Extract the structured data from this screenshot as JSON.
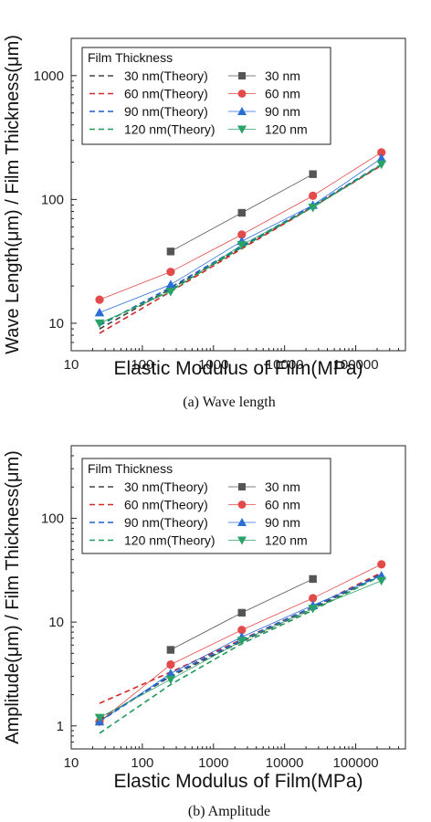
{
  "colors": {
    "s30": "#555555",
    "s60": "#e34a4a",
    "s90": "#2a6fd6",
    "s120": "#2aa368",
    "theory30": "#444444",
    "theory60": "#d42828",
    "theory90": "#1f5fc8",
    "theory120": "#1f9a5a"
  },
  "chart_data": [
    {
      "type": "line",
      "caption": "(a) Wave length",
      "xlabel": "Elastic Modulus of Film(MPa)",
      "ylabel": "Wave Length(μm) / Film Thickness(μm)",
      "xscale": "log",
      "yscale": "log",
      "xlim": [
        10,
        500000
      ],
      "ylim": [
        6,
        2000
      ],
      "x_ticks": [
        10,
        100,
        1000,
        10000,
        100000
      ],
      "x_tick_labels": [
        "10",
        "100",
        "1000",
        "10000",
        "100000"
      ],
      "y_ticks": [
        10,
        100,
        1000
      ],
      "y_tick_labels": [
        "10",
        "100",
        "1000"
      ],
      "legend_title": "Film Thickness",
      "legend_position": "top-left",
      "theory": [
        {
          "name": "30 nm(Theory)",
          "color_key": "theory30",
          "x": [
            25,
            250,
            2500,
            25000,
            230000
          ],
          "y": [
            9.0,
            19.0,
            41.0,
            88.0,
            190.0
          ]
        },
        {
          "name": "60 nm(Theory)",
          "color_key": "theory60",
          "x": [
            25,
            250,
            2500,
            25000,
            230000
          ],
          "y": [
            8.3,
            18.0,
            40.0,
            87.0,
            188.0
          ]
        },
        {
          "name": "90 nm(Theory)",
          "color_key": "theory90",
          "x": [
            25,
            250,
            2500,
            25000,
            230000
          ],
          "y": [
            9.6,
            19.5,
            42.0,
            89.0,
            192.0
          ]
        },
        {
          "name": "120 nm(Theory)",
          "color_key": "theory120",
          "x": [
            25,
            250,
            2500,
            25000,
            230000
          ],
          "y": [
            9.8,
            18.5,
            41.0,
            87.0,
            190.0
          ]
        }
      ],
      "series": [
        {
          "name": "30 nm",
          "color_key": "s30",
          "marker": "square",
          "x": [
            250,
            2500,
            25000
          ],
          "y": [
            38,
            78,
            160
          ]
        },
        {
          "name": "60 nm",
          "color_key": "s60",
          "marker": "circle",
          "x": [
            25,
            250,
            2500,
            25000,
            230000
          ],
          "y": [
            15.5,
            26,
            52,
            107,
            240
          ]
        },
        {
          "name": "90 nm",
          "color_key": "s90",
          "marker": "triangle-up",
          "x": [
            25,
            250,
            2500,
            25000,
            230000
          ],
          "y": [
            12.2,
            20.5,
            46,
            90,
            215
          ]
        },
        {
          "name": "120 nm",
          "color_key": "s120",
          "marker": "triangle-down",
          "x": [
            25,
            250,
            2500,
            25000,
            230000
          ],
          "y": [
            10,
            18,
            43,
            86,
            192
          ]
        }
      ]
    },
    {
      "type": "line",
      "caption": "(b) Amplitude",
      "xlabel": "Elastic Modulus of Film(MPa)",
      "ylabel": "Amplitude(μm) / Film Thickness(μm)",
      "xscale": "log",
      "yscale": "log",
      "xlim": [
        10,
        500000
      ],
      "ylim": [
        0.6,
        500
      ],
      "x_ticks": [
        10,
        100,
        1000,
        10000,
        100000
      ],
      "x_tick_labels": [
        "10",
        "100",
        "1000",
        "10000",
        "100000"
      ],
      "y_ticks": [
        1,
        10,
        100
      ],
      "y_tick_labels": [
        "1",
        "10",
        "100"
      ],
      "legend_title": "Film Thickness",
      "legend_position": "top-left",
      "theory": [
        {
          "name": "30 nm(Theory)",
          "color_key": "theory30",
          "x": [
            25,
            250,
            2500,
            25000,
            230000
          ],
          "y": [
            1.15,
            3.0,
            6.5,
            13.5,
            28.5
          ]
        },
        {
          "name": "60 nm(Theory)",
          "color_key": "theory60",
          "x": [
            25,
            250,
            2500,
            25000,
            230000
          ],
          "y": [
            1.65,
            3.3,
            6.8,
            14.0,
            30.0
          ]
        },
        {
          "name": "90 nm(Theory)",
          "color_key": "theory90",
          "x": [
            25,
            250,
            2500,
            25000,
            230000
          ],
          "y": [
            1.1,
            3.1,
            6.7,
            14.0,
            29.0
          ]
        },
        {
          "name": "120 nm(Theory)",
          "color_key": "theory120",
          "x": [
            25,
            250,
            2500,
            25000,
            230000
          ],
          "y": [
            0.85,
            2.5,
            6.2,
            13.0,
            28.0
          ]
        }
      ],
      "series": [
        {
          "name": "30 nm",
          "color_key": "s30",
          "marker": "square",
          "x": [
            250,
            2500,
            25000
          ],
          "y": [
            5.4,
            12.3,
            26
          ]
        },
        {
          "name": "60 nm",
          "color_key": "s60",
          "marker": "circle",
          "x": [
            25,
            250,
            2500,
            25000,
            230000
          ],
          "y": [
            1.1,
            3.9,
            8.4,
            17,
            36
          ]
        },
        {
          "name": "90 nm",
          "color_key": "s90",
          "marker": "triangle-up",
          "x": [
            25,
            250,
            2500,
            25000,
            230000
          ],
          "y": [
            1.1,
            3.2,
            7.2,
            14.5,
            28
          ]
        },
        {
          "name": "120 nm",
          "color_key": "s120",
          "marker": "triangle-down",
          "x": [
            25,
            250,
            2500,
            25000,
            230000
          ],
          "y": [
            1.2,
            2.8,
            6.6,
            13.5,
            25
          ]
        }
      ]
    }
  ]
}
